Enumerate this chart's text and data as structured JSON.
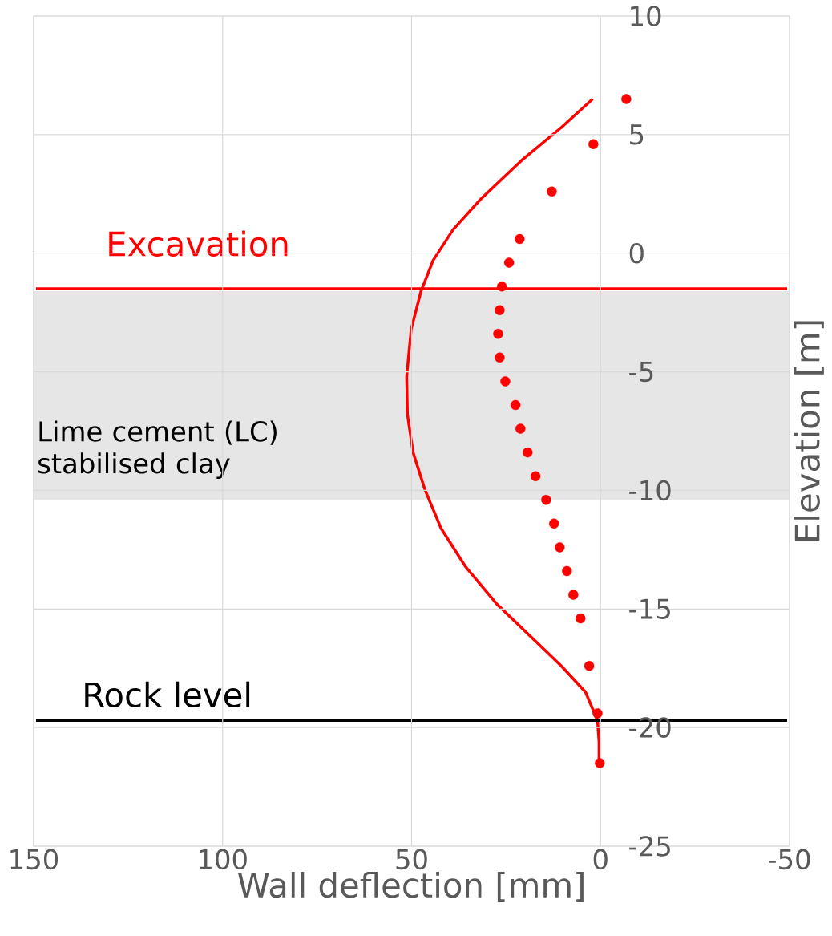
{
  "chart_data": {
    "type": "line",
    "xlabel": "Wall deflection [mm]",
    "ylabel": "Elevation [m]",
    "xlim": [
      150,
      -50
    ],
    "xticks": [
      150,
      100,
      50,
      0,
      -50
    ],
    "ylim": [
      -25,
      10
    ],
    "yticks": [
      10,
      5,
      0,
      -5,
      -10,
      -15,
      -20,
      -25
    ],
    "grid": true,
    "series": [
      {
        "color": "#ff0000",
        "marker": "none",
        "x": [
          2.1,
          10.4,
          21.0,
          31.6,
          39.0,
          44.3,
          47.5,
          50.1,
          51.3,
          51.1,
          49.6,
          46.4,
          42.2,
          35.8,
          27.4,
          18.9,
          10.4,
          4.0,
          0.8,
          0.4,
          0.4
        ],
        "values": [
          6.5,
          5.3,
          3.9,
          2.3,
          1.0,
          -0.3,
          -1.6,
          -3.2,
          -5.2,
          -6.8,
          -8.4,
          -10.0,
          -11.6,
          -13.2,
          -14.8,
          -16.1,
          -17.4,
          -18.5,
          -19.7,
          -20.6,
          -21.5
        ]
      },
      {
        "type": "scatter",
        "color": "#ff0000",
        "marker": "circle",
        "x": [
          -6.8,
          1.9,
          12.9,
          21.4,
          24.2,
          26.1,
          26.7,
          27.1,
          26.7,
          25.2,
          22.5,
          21.2,
          19.3,
          17.2,
          14.4,
          12.3,
          10.8,
          8.9,
          7.2,
          5.3,
          3.0,
          0.8,
          0.2
        ],
        "values": [
          6.5,
          4.6,
          2.6,
          0.6,
          -0.4,
          -1.4,
          -2.4,
          -3.4,
          -4.4,
          -5.4,
          -6.4,
          -7.4,
          -8.4,
          -9.4,
          -10.4,
          -11.4,
          -12.4,
          -13.4,
          -14.4,
          -15.4,
          -17.4,
          -19.4,
          -21.5
        ]
      }
    ],
    "ref_lines": [
      {
        "axis": "y",
        "value": -1.5,
        "label": "Excavation",
        "color": "#ff0000"
      },
      {
        "axis": "y",
        "value": -19.7,
        "label": "Rock level",
        "color": "#000000"
      }
    ],
    "bands": [
      {
        "axis": "y",
        "from": -10.4,
        "to": -1.6,
        "label": "Lime cement (LC) stabilised clay",
        "color": "#e6e6e6"
      }
    ]
  }
}
